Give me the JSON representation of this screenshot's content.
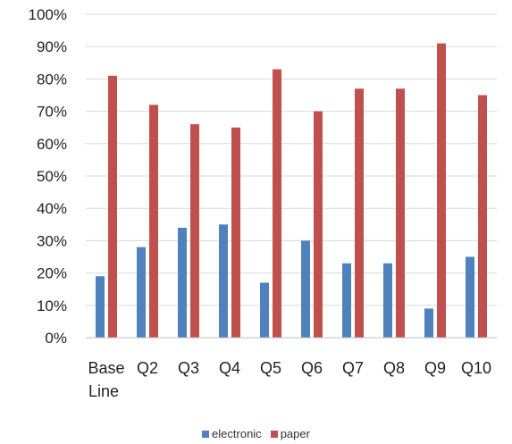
{
  "chart_data": {
    "type": "bar",
    "categories": [
      [
        "Base",
        "Line"
      ],
      [
        "Q2"
      ],
      [
        "Q3"
      ],
      [
        "Q4"
      ],
      [
        "Q5"
      ],
      [
        "Q6"
      ],
      [
        "Q7"
      ],
      [
        "Q8"
      ],
      [
        "Q9"
      ],
      [
        "Q10"
      ]
    ],
    "series": [
      {
        "name": "electronic",
        "color": "#4F81BD",
        "values": [
          19,
          28,
          34,
          35,
          17,
          30,
          23,
          23,
          9,
          25
        ]
      },
      {
        "name": "paper",
        "color": "#C0504D",
        "values": [
          81,
          72,
          66,
          65,
          83,
          70,
          77,
          77,
          91,
          75
        ]
      }
    ],
    "ylim": [
      0,
      100
    ],
    "yticks": [
      "0%",
      "10%",
      "20%",
      "30%",
      "40%",
      "50%",
      "60%",
      "70%",
      "80%",
      "90%",
      "100%"
    ],
    "grid": true,
    "legend_position": "bottom"
  }
}
